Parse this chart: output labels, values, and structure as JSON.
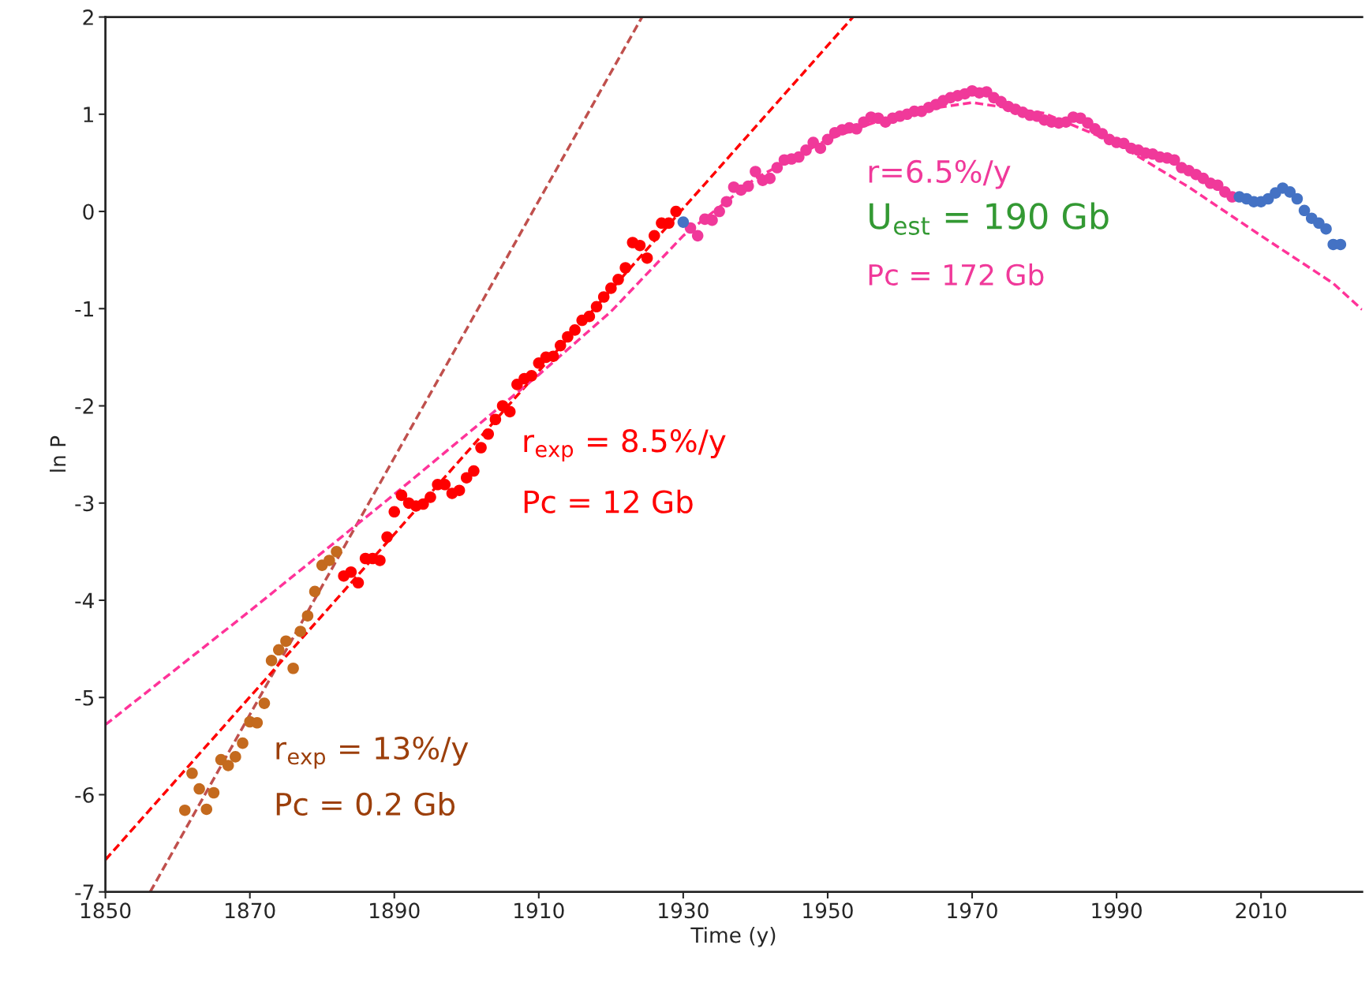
{
  "chart_data": {
    "type": "scatter",
    "xlabel": "Time (y)",
    "ylabel": "ln P",
    "xlim": [
      1850,
      2024
    ],
    "ylim": [
      -7,
      2
    ],
    "xticks": [
      1850,
      1870,
      1890,
      1910,
      1930,
      1950,
      1970,
      1990,
      2010
    ],
    "yticks": [
      -7,
      -6,
      -5,
      -4,
      -3,
      -2,
      -1,
      0,
      1,
      2
    ],
    "grid": false,
    "marker": "circle",
    "series": [
      {
        "type": "line",
        "marker": "none",
        "line_style": "dashed",
        "color": "#c0504d",
        "x": [
          1856.2,
          1924.3
        ],
        "values": [
          -7,
          2
        ]
      },
      {
        "type": "line",
        "marker": "none",
        "line_style": "dashed",
        "color": "#ff0000",
        "x": [
          1850,
          1953.5
        ],
        "values": [
          -6.67,
          2
        ]
      },
      {
        "type": "line",
        "marker": "none",
        "line_style": "dashed",
        "color": "#ff3399",
        "x": [
          1850,
          1870,
          1890,
          1910,
          1920,
          1930,
          1940,
          1950,
          1960,
          1970,
          1980,
          1990,
          2000,
          2010,
          2020,
          2024
        ],
        "values": [
          -5.28,
          -4.11,
          -2.91,
          -1.68,
          -1.03,
          -0.25,
          0.34,
          0.74,
          1.01,
          1.12,
          1.01,
          0.7,
          0.25,
          -0.25,
          -0.74,
          -1.01
        ]
      },
      {
        "color": "#c46a1e",
        "x": [
          1861,
          1862,
          1863,
          1864,
          1865,
          1866,
          1867,
          1868,
          1869,
          1870,
          1871,
          1872,
          1873,
          1874,
          1875,
          1876,
          1877,
          1878,
          1879,
          1880,
          1881,
          1882
        ],
        "values": [
          -6.16,
          -5.78,
          -5.94,
          -6.15,
          -5.98,
          -5.64,
          -5.7,
          -5.61,
          -5.47,
          -5.25,
          -5.26,
          -5.06,
          -4.62,
          -4.51,
          -4.42,
          -4.7,
          -4.32,
          -4.16,
          -3.91,
          -3.64,
          -3.59,
          -3.5
        ]
      },
      {
        "color": "#ff0000",
        "x": [
          1883,
          1884,
          1885,
          1886,
          1887,
          1888,
          1889,
          1890,
          1891,
          1892,
          1893,
          1894,
          1895,
          1896,
          1897,
          1898,
          1899,
          1900,
          1901,
          1902,
          1903,
          1904,
          1905,
          1906,
          1907,
          1908,
          1909,
          1910,
          1911,
          1912,
          1913,
          1914,
          1915,
          1916,
          1917,
          1918,
          1919,
          1920,
          1921,
          1922,
          1923,
          1924,
          1925,
          1926,
          1927,
          1928,
          1929
        ],
        "values": [
          -3.75,
          -3.71,
          -3.82,
          -3.57,
          -3.57,
          -3.59,
          -3.35,
          -3.09,
          -2.92,
          -3.0,
          -3.03,
          -3.01,
          -2.94,
          -2.81,
          -2.81,
          -2.9,
          -2.87,
          -2.74,
          -2.67,
          -2.43,
          -2.29,
          -2.14,
          -2.0,
          -2.06,
          -1.78,
          -1.72,
          -1.69,
          -1.56,
          -1.5,
          -1.49,
          -1.38,
          -1.29,
          -1.22,
          -1.12,
          -1.08,
          -0.98,
          -0.88,
          -0.79,
          -0.7,
          -0.58,
          -0.32,
          -0.35,
          -0.48,
          -0.25,
          -0.12,
          -0.12,
          0.0
        ]
      },
      {
        "color": "#f0399a",
        "x": [
          1931,
          1932,
          1933,
          1934,
          1935,
          1936,
          1937,
          1938,
          1939,
          1940,
          1941,
          1942,
          1943,
          1944,
          1945,
          1946,
          1947,
          1948,
          1949,
          1950,
          1951,
          1952,
          1953,
          1954,
          1955,
          1956,
          1957,
          1958,
          1959,
          1960,
          1961,
          1962,
          1963,
          1964,
          1965,
          1966,
          1967,
          1968,
          1969,
          1970,
          1971,
          1972,
          1973,
          1974,
          1975,
          1976,
          1977,
          1978,
          1979,
          1980,
          1981,
          1982,
          1983,
          1984,
          1985,
          1986,
          1987,
          1988,
          1989,
          1990,
          1991,
          1992,
          1993,
          1994,
          1995,
          1996,
          1997,
          1998,
          1999,
          2000,
          2001,
          2002,
          2003,
          2004,
          2005,
          2006
        ],
        "values": [
          -0.17,
          -0.25,
          -0.08,
          -0.09,
          0.0,
          0.1,
          0.25,
          0.22,
          0.26,
          0.41,
          0.32,
          0.34,
          0.45,
          0.53,
          0.54,
          0.56,
          0.63,
          0.71,
          0.65,
          0.74,
          0.81,
          0.84,
          0.86,
          0.85,
          0.92,
          0.97,
          0.96,
          0.92,
          0.96,
          0.98,
          1.0,
          1.03,
          1.03,
          1.07,
          1.1,
          1.14,
          1.17,
          1.19,
          1.21,
          1.24,
          1.22,
          1.23,
          1.17,
          1.13,
          1.08,
          1.05,
          1.02,
          0.99,
          0.98,
          0.94,
          0.92,
          0.91,
          0.92,
          0.97,
          0.96,
          0.91,
          0.85,
          0.8,
          0.74,
          0.71,
          0.7,
          0.65,
          0.63,
          0.6,
          0.59,
          0.56,
          0.55,
          0.53,
          0.45,
          0.42,
          0.38,
          0.34,
          0.29,
          0.27,
          0.2,
          0.15
        ]
      },
      {
        "color": "#4472c4",
        "x": [
          1930,
          2007,
          2008,
          2009,
          2010,
          2011,
          2012,
          2013,
          2014,
          2015,
          2016,
          2017,
          2018,
          2019,
          2020,
          2021
        ],
        "values": [
          -0.11,
          0.15,
          0.13,
          0.1,
          0.1,
          0.13,
          0.19,
          0.24,
          0.2,
          0.13,
          0.01,
          -0.07,
          -0.12,
          -0.18,
          -0.34,
          -0.34
        ]
      }
    ],
    "annotations": [
      "r$_{exp}$ = 13%/y",
      "Pc = 0.2 Gb",
      "r$_{exp}$ = 8.5%/y",
      "Pc = 12 Gb",
      "r=6.5%/y",
      "U$_{est}$ = 190 Gb",
      "Pc = 172 Gb"
    ]
  }
}
